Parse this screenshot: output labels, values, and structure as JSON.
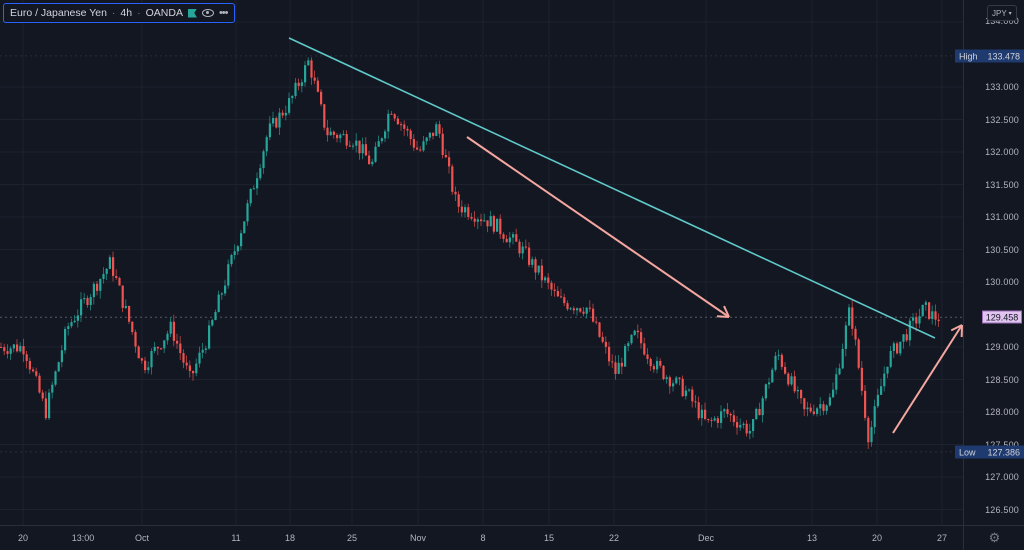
{
  "legend": {
    "symbol": "Euro / Japanese Yen",
    "interval": "4h",
    "exchange": "OANDA",
    "icons": [
      "flag-icon",
      "eye-icon",
      "more-icon"
    ]
  },
  "price_axis": {
    "currency": "JPY",
    "high_label": "High",
    "high_value": "133.478",
    "low_label": "Low",
    "low_value": "127.386",
    "last_price": "129.458"
  },
  "colors": {
    "background": "#131722",
    "up_candle": "#26a69a",
    "down_candle": "#ef5350",
    "trendline": "#5fc8c8",
    "arrows": "#f4a6a0",
    "grid": "#1e222d",
    "last_price_bg": "#e1c4f0",
    "high_low_bg": "#1e3a6e"
  },
  "chart_data": {
    "type": "candlestick",
    "title": "Euro / Japanese Yen · 4h · OANDA",
    "xlabel": "",
    "ylabel": "JPY",
    "ylim": [
      126.2,
      134.2
    ],
    "y_ticks": [
      "134.000",
      "133.000",
      "132.500",
      "132.000",
      "131.500",
      "131.000",
      "130.500",
      "130.000",
      "129.000",
      "128.500",
      "128.000",
      "127.500",
      "127.000",
      "126.500"
    ],
    "x_ticks": [
      "20",
      "13:00",
      "Oct",
      "11",
      "18",
      "25",
      "Nov",
      "8",
      "15",
      "22",
      "Dec",
      "13",
      "20",
      "27"
    ],
    "grid": true,
    "high": 133.478,
    "low": 127.386,
    "last": 129.458,
    "approx_close_path": [
      {
        "x": "Sep 20",
        "price": 129.0
      },
      {
        "x": "Sep 22",
        "price": 128.0
      },
      {
        "x": "Sep 24",
        "price": 129.3
      },
      {
        "x": "Sep 28",
        "price": 130.3
      },
      {
        "x": "Oct 1",
        "price": 128.7
      },
      {
        "x": "Oct 4",
        "price": 129.3
      },
      {
        "x": "Oct 6",
        "price": 128.5
      },
      {
        "x": "Oct 8",
        "price": 129.2
      },
      {
        "x": "Oct 12",
        "price": 131.0
      },
      {
        "x": "Oct 15",
        "price": 132.3
      },
      {
        "x": "Oct 18",
        "price": 132.8
      },
      {
        "x": "Oct 20",
        "price": 133.4
      },
      {
        "x": "Oct 22",
        "price": 132.3
      },
      {
        "x": "Oct 25",
        "price": 132.2
      },
      {
        "x": "Oct 27",
        "price": 131.8
      },
      {
        "x": "Oct 29",
        "price": 132.7
      },
      {
        "x": "Nov 1",
        "price": 132.0
      },
      {
        "x": "Nov 3",
        "price": 132.4
      },
      {
        "x": "Nov 5",
        "price": 131.2
      },
      {
        "x": "Nov 9",
        "price": 130.9
      },
      {
        "x": "Nov 12",
        "price": 130.5
      },
      {
        "x": "Nov 16",
        "price": 129.7
      },
      {
        "x": "Nov 19",
        "price": 129.6
      },
      {
        "x": "Nov 22",
        "price": 128.6
      },
      {
        "x": "Nov 24",
        "price": 129.2
      },
      {
        "x": "Nov 26",
        "price": 128.7
      },
      {
        "x": "Nov 29",
        "price": 128.3
      },
      {
        "x": "Dec 1",
        "price": 127.8
      },
      {
        "x": "Dec 3",
        "price": 128.0
      },
      {
        "x": "Dec 6",
        "price": 127.7
      },
      {
        "x": "Dec 9",
        "price": 128.9
      },
      {
        "x": "Dec 12",
        "price": 128.0
      },
      {
        "x": "Dec 15",
        "price": 128.2
      },
      {
        "x": "Dec 17",
        "price": 129.6
      },
      {
        "x": "Dec 19",
        "price": 127.6
      },
      {
        "x": "Dec 21",
        "price": 128.8
      },
      {
        "x": "Dec 23",
        "price": 129.2
      },
      {
        "x": "Dec 25",
        "price": 129.6
      },
      {
        "x": "Dec 26",
        "price": 129.458
      }
    ],
    "annotations": [
      {
        "type": "trendline",
        "color": "#5fc8c8",
        "from": {
          "x": "Oct 18",
          "price": 133.8
        },
        "to": {
          "x": "Dec 25",
          "price": 129.1
        }
      },
      {
        "type": "arrow",
        "direction": "down",
        "color": "#f4a6a0",
        "from": {
          "x": "Nov 5",
          "price": 132.2
        },
        "to": {
          "x": "Dec 1",
          "price": 129.5
        }
      },
      {
        "type": "arrow",
        "direction": "up",
        "color": "#f4a6a0",
        "from": {
          "x": "Dec 21",
          "price": 127.6
        },
        "to": {
          "x": "Dec 28",
          "price": 129.4
        }
      }
    ]
  }
}
